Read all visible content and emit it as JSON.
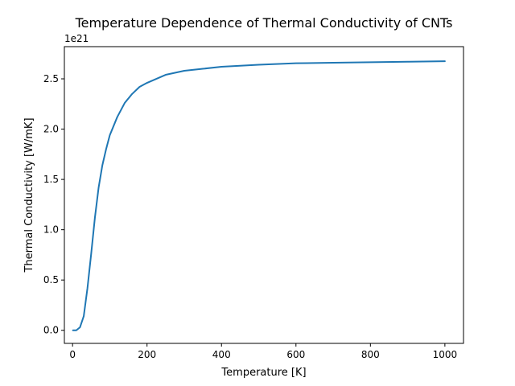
{
  "chart_data": {
    "type": "line",
    "title": "Temperature Dependence of Thermal Conductivity of CNTs",
    "xlabel": "Temperature [K]",
    "ylabel": "Thermal Conductivity [W/mK]",
    "y_offset_label": "1e21",
    "xlim": [
      -22,
      1050
    ],
    "ylim": [
      -0.13,
      2.82
    ],
    "xticks": [
      {
        "value": 0,
        "label": "0"
      },
      {
        "value": 200,
        "label": "200"
      },
      {
        "value": 400,
        "label": "400"
      },
      {
        "value": 600,
        "label": "600"
      },
      {
        "value": 800,
        "label": "800"
      },
      {
        "value": 1000,
        "label": "1000"
      }
    ],
    "yticks": [
      {
        "value": 0.0,
        "label": "0.0"
      },
      {
        "value": 0.5,
        "label": "0.5"
      },
      {
        "value": 1.0,
        "label": "1.0"
      },
      {
        "value": 1.5,
        "label": "1.5"
      },
      {
        "value": 2.0,
        "label": "2.0"
      },
      {
        "value": 2.5,
        "label": "2.5"
      }
    ],
    "grid": false,
    "series": [
      {
        "color": "#1f77b4",
        "x": [
          1,
          10,
          20,
          30,
          40,
          50,
          60,
          70,
          80,
          90,
          100,
          120,
          140,
          160,
          180,
          200,
          250,
          300,
          350,
          400,
          500,
          600,
          700,
          800,
          900,
          1000
        ],
        "y": [
          0.0,
          0.0,
          0.03,
          0.14,
          0.42,
          0.76,
          1.12,
          1.42,
          1.64,
          1.8,
          1.94,
          2.12,
          2.26,
          2.35,
          2.42,
          2.46,
          2.54,
          2.58,
          2.6,
          2.62,
          2.64,
          2.655,
          2.66,
          2.665,
          2.67,
          2.675
        ]
      }
    ]
  }
}
